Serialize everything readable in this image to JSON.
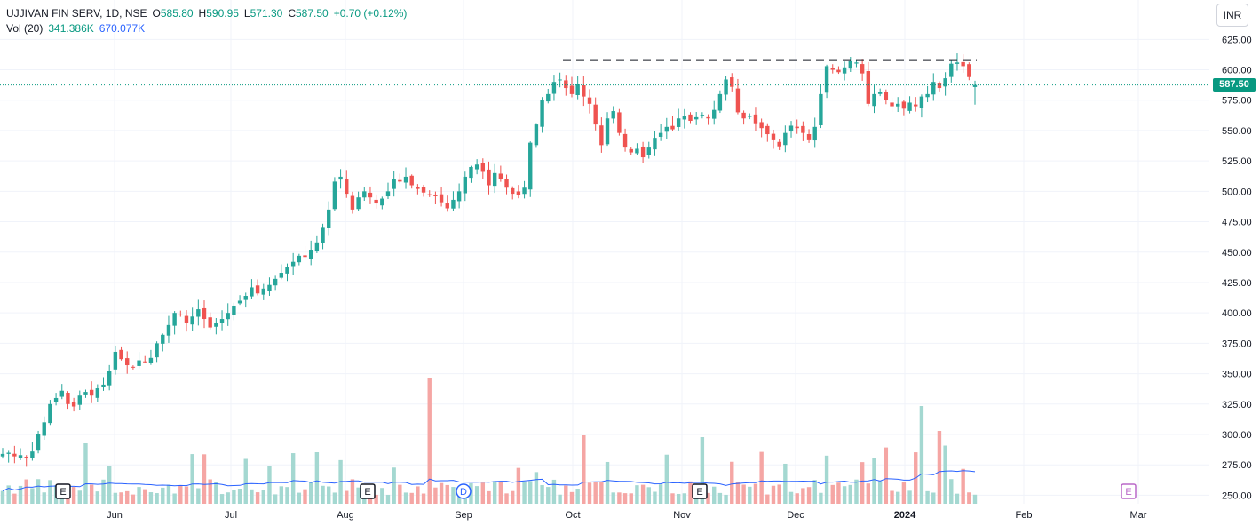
{
  "header": {
    "symbol": "UJJIVAN FIN SERV, 1D, NSE",
    "o_label": "O",
    "o": "585.80",
    "h_label": "H",
    "h": "590.95",
    "l_label": "L",
    "l": "571.30",
    "c_label": "C",
    "c": "587.50",
    "change": "+0.70 (+0.12%)",
    "vol_label": "Vol (20)",
    "vol_value": "341.386K",
    "vol_ma": "670.077K"
  },
  "currency": "INR",
  "last_price": "587.50",
  "colors": {
    "up": "#26a69a",
    "down": "#ef5350",
    "vol_up": "#a4d8d1",
    "vol_down": "#f5a6a4",
    "vol_ma": "#2962ff"
  },
  "chart_data": {
    "type": "candlestick",
    "y_ticks": [
      "625.00",
      "600.00",
      "575.00",
      "550.00",
      "525.00",
      "500.00",
      "475.00",
      "450.00",
      "425.00",
      "400.00",
      "375.00",
      "350.00",
      "325.00",
      "300.00",
      "275.00",
      "250.00"
    ],
    "ylim": [
      243,
      634
    ],
    "x_ticks": [
      "Jun",
      "Jul",
      "Aug",
      "Sep",
      "Oct",
      "Nov",
      "Dec",
      "2024",
      "Feb",
      "Mar"
    ],
    "resistance_level": 608,
    "events": [
      {
        "label": "E",
        "month": "May"
      },
      {
        "label": "E",
        "month": "Aug"
      },
      {
        "label": "D",
        "month": "Sep"
      },
      {
        "label": "E",
        "month": "Nov"
      },
      {
        "label": "E",
        "month": "Mar"
      }
    ],
    "closes": [
      284,
      285,
      282,
      283,
      281,
      286,
      300,
      310,
      325,
      330,
      336,
      325,
      323,
      332,
      335,
      332,
      338,
      341,
      352,
      368,
      362,
      357,
      355,
      361,
      360,
      363,
      375,
      382,
      390,
      400,
      398,
      392,
      397,
      403,
      395,
      388,
      392,
      395,
      400,
      406,
      410,
      414,
      421,
      416,
      420,
      423,
      428,
      433,
      438,
      442,
      447,
      446,
      452,
      458,
      470,
      485,
      508,
      512,
      498,
      485,
      495,
      500,
      495,
      490,
      494,
      500,
      510,
      508,
      512,
      505,
      502,
      499,
      497,
      496,
      491,
      486,
      493,
      500,
      512,
      520,
      522,
      516,
      505,
      515,
      510,
      503,
      498,
      497,
      503,
      540,
      555,
      575,
      580,
      590,
      592,
      585,
      580,
      588,
      578,
      572,
      555,
      538,
      560,
      566,
      548,
      536,
      532,
      535,
      528,
      536,
      544,
      548,
      553,
      551,
      560,
      562,
      558,
      561,
      563,
      560,
      567,
      580,
      592,
      586,
      565,
      560,
      562,
      556,
      552,
      547,
      542,
      537,
      548,
      554,
      552,
      548,
      542,
      553,
      580,
      603,
      600,
      598,
      602,
      607,
      606,
      597,
      572,
      580,
      582,
      575,
      570,
      572,
      568,
      573,
      570,
      578,
      580,
      590,
      585,
      593,
      605,
      606,
      603,
      594,
      587.5
    ]
  }
}
